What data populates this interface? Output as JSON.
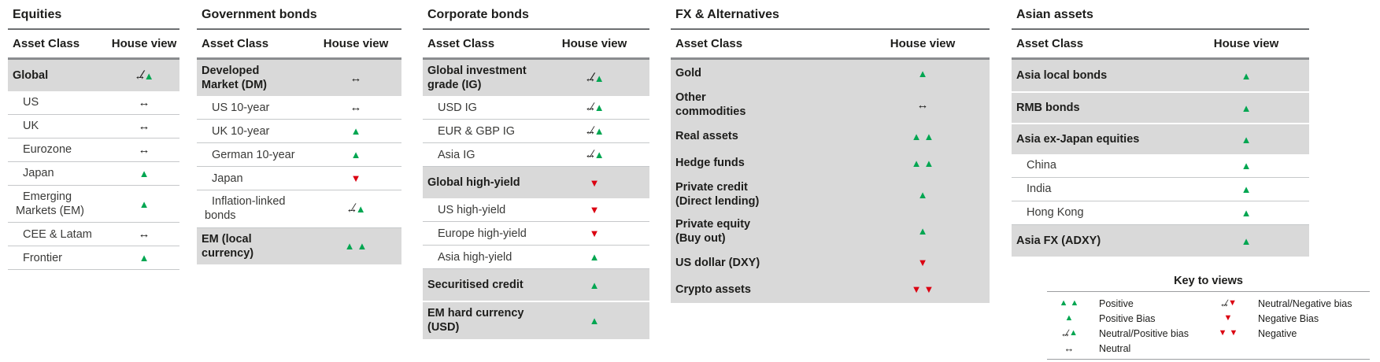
{
  "colors": {
    "positive_green": "#00A651",
    "negative_red": "#DB0011",
    "row_highlight_gray": "#D9D9D9"
  },
  "glyphs": {
    "tri-up": "▲",
    "tri-down": "▼",
    "arrow": "↔",
    "slash": "∕"
  },
  "symbols": {
    "positive": {
      "parts": [
        "tri-up",
        "tri-up"
      ],
      "meaning": "Positive"
    },
    "positive_bias": {
      "parts": [
        "tri-up"
      ],
      "meaning": "Positive Bias"
    },
    "neutral_positive_bias": {
      "parts": [
        "arrow",
        "slash",
        "tri-up"
      ],
      "meaning": "Neutral/Positive bias"
    },
    "neutral": {
      "parts": [
        "arrow"
      ],
      "meaning": "Neutral"
    },
    "neutral_negative_bias": {
      "parts": [
        "arrow",
        "slash",
        "tri-down"
      ],
      "meaning": "Neutral/Negative bias"
    },
    "negative_bias": {
      "parts": [
        "tri-down"
      ],
      "meaning": "Negative Bias"
    },
    "negative": {
      "parts": [
        "tri-down",
        "tri-down"
      ],
      "meaning": "Negative"
    }
  },
  "tables": [
    {
      "title": "Equities",
      "columns": {
        "asset": "Asset Class",
        "view": "House view"
      },
      "rows": [
        {
          "label": "Global",
          "level": "head",
          "view": "neutral_positive_bias"
        },
        {
          "label": "US",
          "level": "sub",
          "view": "neutral"
        },
        {
          "label": "UK",
          "level": "sub",
          "view": "neutral"
        },
        {
          "label": "Eurozone",
          "level": "sub",
          "view": "neutral"
        },
        {
          "label": "Japan",
          "level": "sub",
          "view": "positive_bias"
        },
        {
          "label": "Emerging\nMarkets (EM)",
          "level": "sub",
          "view": "positive_bias"
        },
        {
          "label": "CEE & Latam",
          "level": "sub",
          "view": "neutral"
        },
        {
          "label": "Frontier",
          "level": "sub",
          "view": "positive_bias"
        }
      ]
    },
    {
      "title": "Government bonds",
      "columns": {
        "asset": "Asset Class",
        "view": "House view"
      },
      "rows": [
        {
          "label": "Developed\nMarket (DM)",
          "level": "head",
          "view": "neutral"
        },
        {
          "label": "US 10-year",
          "level": "sub",
          "view": "neutral"
        },
        {
          "label": "UK 10-year",
          "level": "sub",
          "view": "positive_bias"
        },
        {
          "label": "German 10-year",
          "level": "sub",
          "view": "positive_bias"
        },
        {
          "label": "Japan",
          "level": "sub",
          "view": "negative_bias"
        },
        {
          "label": "Inflation-linked\nbonds",
          "level": "sub",
          "view": "neutral_positive_bias"
        },
        {
          "label": "EM (local\ncurrency)",
          "level": "head",
          "view": "positive"
        }
      ]
    },
    {
      "title": "Corporate bonds",
      "columns": {
        "asset": "Asset Class",
        "view": "House view"
      },
      "rows": [
        {
          "label": "Global investment\ngrade (IG)",
          "level": "head",
          "view": "neutral_positive_bias"
        },
        {
          "label": "USD IG",
          "level": "sub",
          "view": "neutral_positive_bias"
        },
        {
          "label": "EUR & GBP IG",
          "level": "sub",
          "view": "neutral_positive_bias"
        },
        {
          "label": "Asia IG",
          "level": "sub",
          "view": "neutral_positive_bias"
        },
        {
          "label": "Global high-yield",
          "level": "head",
          "view": "negative_bias"
        },
        {
          "label": "US high-yield",
          "level": "sub",
          "view": "negative_bias"
        },
        {
          "label": "Europe high-yield",
          "level": "sub",
          "view": "negative_bias"
        },
        {
          "label": "Asia high-yield",
          "level": "sub",
          "view": "positive_bias"
        },
        {
          "label": "Securitised credit",
          "level": "head",
          "view": "positive_bias"
        },
        {
          "label": "EM hard currency\n(USD)",
          "level": "head",
          "view": "positive_bias"
        }
      ]
    },
    {
      "title": "FX & Alternatives",
      "columns": {
        "asset": "Asset Class",
        "view": "House view"
      },
      "rows": [
        {
          "label": "Gold",
          "level": "head",
          "view": "positive_bias"
        },
        {
          "label": "Other\ncommodities",
          "level": "head",
          "view": "neutral"
        },
        {
          "label": "Real assets",
          "level": "head",
          "view": "positive"
        },
        {
          "label": "Hedge funds",
          "level": "head",
          "view": "positive"
        },
        {
          "label": "Private credit\n(Direct lending)",
          "level": "head",
          "view": "positive_bias"
        },
        {
          "label": "Private equity\n(Buy out)",
          "level": "head",
          "view": "positive_bias"
        },
        {
          "label": "US dollar (DXY)",
          "level": "head",
          "view": "negative_bias"
        },
        {
          "label": "Crypto assets",
          "level": "head",
          "view": "negative"
        }
      ]
    },
    {
      "title": "Asian assets",
      "columns": {
        "asset": "Asset Class",
        "view": "House view"
      },
      "rows": [
        {
          "label": "Asia local bonds",
          "level": "head",
          "view": "positive_bias"
        },
        {
          "label": "RMB bonds",
          "level": "head",
          "view": "positive_bias"
        },
        {
          "label": "Asia ex-Japan equities",
          "level": "head",
          "view": "positive_bias"
        },
        {
          "label": "China",
          "level": "sub",
          "view": "positive_bias"
        },
        {
          "label": "India",
          "level": "sub",
          "view": "positive_bias"
        },
        {
          "label": "Hong Kong",
          "level": "sub",
          "view": "positive_bias"
        },
        {
          "label": "Asia FX (ADXY)",
          "level": "head",
          "view": "positive_bias"
        }
      ]
    }
  ],
  "legend": {
    "title": "Key to views",
    "items_left": [
      {
        "view": "positive",
        "label": "Positive"
      },
      {
        "view": "positive_bias",
        "label": "Positive Bias"
      },
      {
        "view": "neutral_positive_bias",
        "label": "Neutral/Positive bias"
      },
      {
        "view": "neutral",
        "label": "Neutral"
      }
    ],
    "items_right": [
      {
        "view": "neutral_negative_bias",
        "label": "Neutral/Negative bias"
      },
      {
        "view": "negative_bias",
        "label": "Negative Bias"
      },
      {
        "view": "negative",
        "label": "Negative"
      }
    ]
  }
}
